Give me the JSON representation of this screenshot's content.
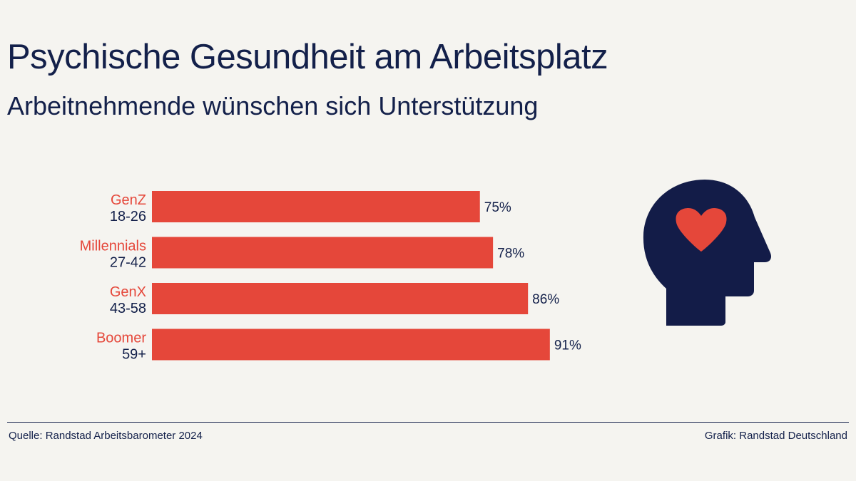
{
  "header": {
    "title": "Psychische Gesundheit am Arbeitsplatz",
    "subtitle": "Arbeitnehmende wünschen sich Unterstützung"
  },
  "chart_data": {
    "type": "bar",
    "orientation": "horizontal",
    "categories": [
      "GenZ",
      "Millennials",
      "GenX",
      "Boomer"
    ],
    "category_sublabels": [
      "18-26",
      "27-42",
      "43-58",
      "59+"
    ],
    "values": [
      75,
      78,
      86,
      91
    ],
    "value_labels": [
      "75%",
      "78%",
      "86%",
      "91%"
    ],
    "xlim": [
      0,
      100
    ],
    "grid": false,
    "colors": {
      "bar": "#e5473a",
      "category": "#e5473a",
      "text": "#13204a"
    }
  },
  "illustration": {
    "icon": "head-with-heart-icon",
    "head_color": "#131c48",
    "heart_color": "#e5473a"
  },
  "footer": {
    "source": "Quelle: Randstad Arbeitsbarometer 2024",
    "credit": "Grafik: Randstad Deutschland"
  }
}
